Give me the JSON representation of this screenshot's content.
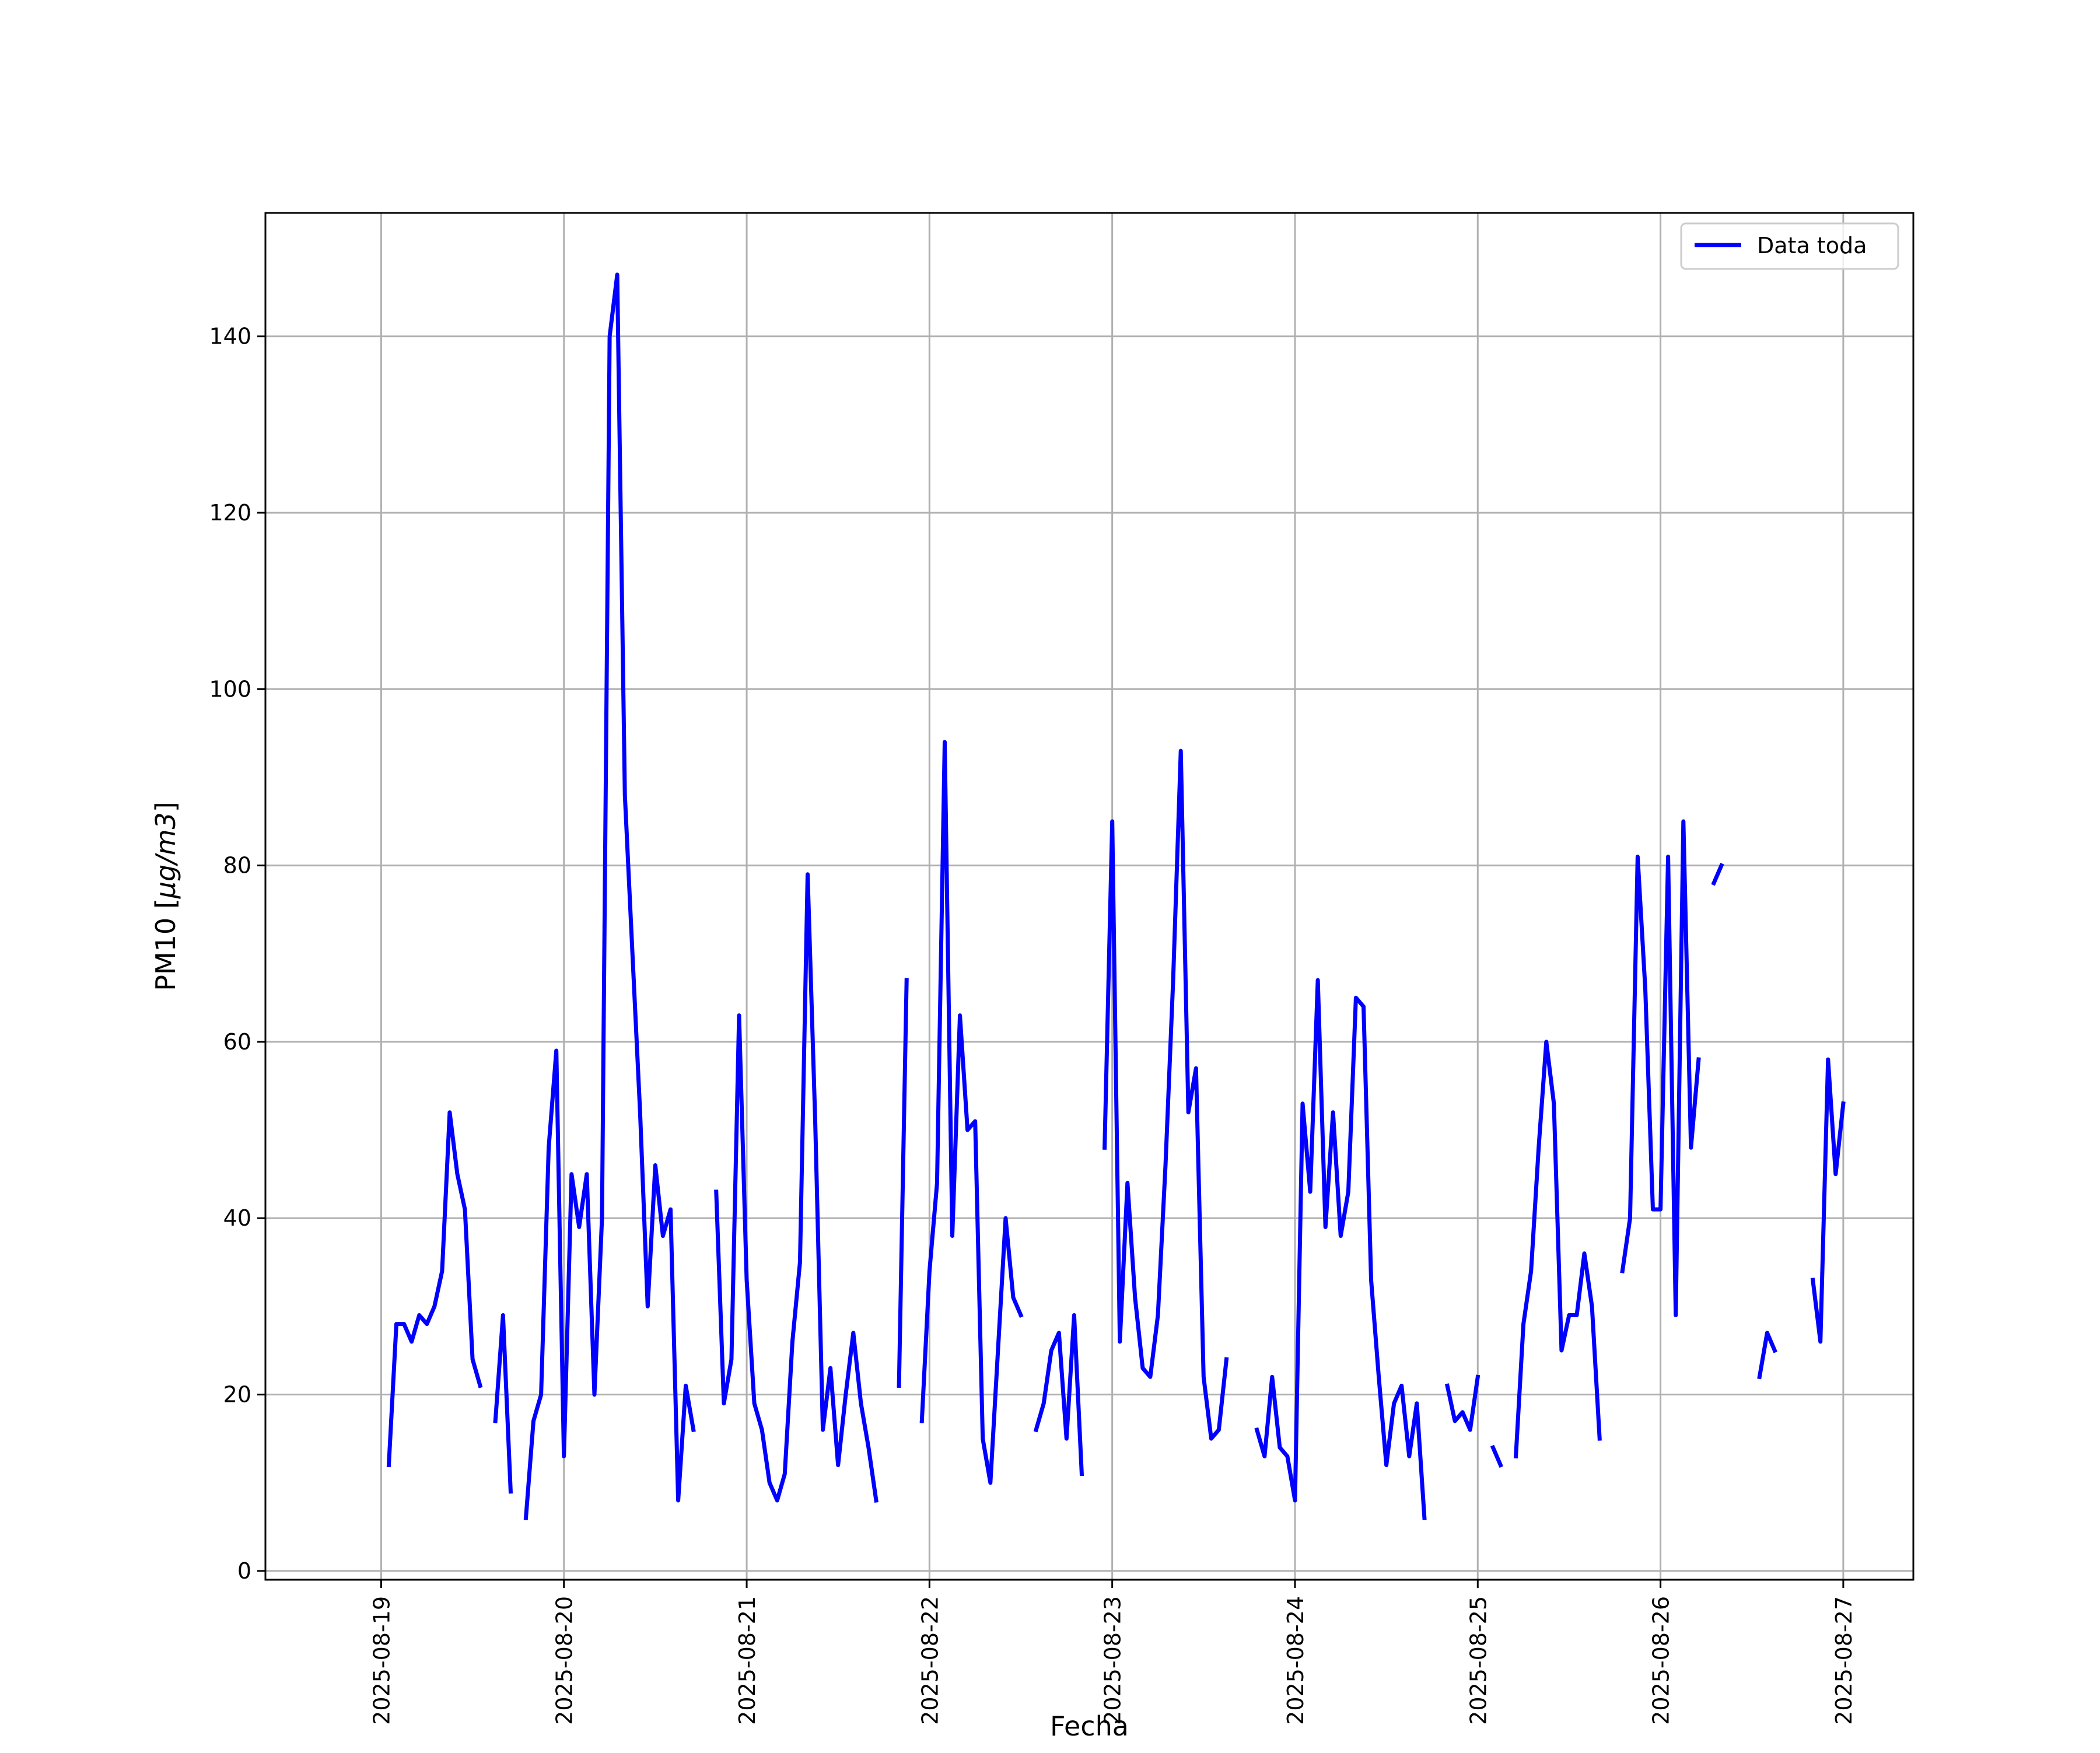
{
  "chart_data": {
    "type": "line",
    "title": "",
    "xlabel": "Fecha",
    "ylabel": "PM10 [μg/m3]",
    "ylabel_parts": {
      "prefix": "PM10 [",
      "italic": "μg/m3",
      "suffix": "]"
    },
    "x_ticks": [
      "2025-08-19",
      "2025-08-20",
      "2025-08-21",
      "2025-08-22",
      "2025-08-23",
      "2025-08-24",
      "2025-08-25",
      "2025-08-26",
      "2025-08-27"
    ],
    "y_ticks": [
      "0",
      "20",
      "40",
      "60",
      "80",
      "100",
      "120",
      "140"
    ],
    "xlim": [
      "2025-08-18 08:48",
      "2025-08-27 09:12"
    ],
    "ylim": [
      -1,
      154
    ],
    "grid": true,
    "legend": {
      "position": "upper right",
      "entries": [
        "Data toda"
      ]
    },
    "series": [
      {
        "name": "Data toda",
        "color": "#0000ff",
        "x_start": "2025-08-19 01:00",
        "x_step_hours": 1,
        "values": [
          12,
          28,
          28,
          26,
          29,
          28,
          30,
          34,
          52,
          45,
          41,
          24,
          21,
          null,
          17,
          29,
          9,
          null,
          6,
          17,
          20,
          48,
          59,
          13,
          45,
          39,
          45,
          20,
          40,
          140,
          147,
          88,
          70,
          52,
          30,
          46,
          38,
          41,
          8,
          21,
          16,
          null,
          null,
          43,
          19,
          24,
          63,
          33,
          19,
          16,
          10,
          8,
          11,
          26,
          35,
          79,
          51,
          16,
          23,
          12,
          20,
          27,
          19,
          14,
          8,
          null,
          null,
          21,
          67,
          null,
          17,
          34,
          44,
          94,
          38,
          63,
          50,
          51,
          15,
          10,
          25,
          40,
          31,
          29,
          null,
          16,
          19,
          25,
          27,
          15,
          29,
          11,
          null,
          null,
          48,
          85,
          26,
          44,
          31,
          23,
          22,
          29,
          46,
          67,
          93,
          52,
          57,
          22,
          15,
          16,
          24,
          null,
          null,
          null,
          16,
          13,
          22,
          14,
          13,
          8,
          53,
          43,
          67,
          39,
          52,
          38,
          43,
          65,
          64,
          33,
          22,
          12,
          19,
          21,
          13,
          19,
          6,
          null,
          null,
          21,
          17,
          18,
          16,
          22,
          null,
          14,
          12,
          null,
          13,
          28,
          34,
          48,
          60,
          53,
          25,
          29,
          29,
          36,
          30,
          15,
          null,
          null,
          34,
          40,
          81,
          66,
          41,
          41,
          81,
          29,
          85,
          48,
          58,
          null,
          78,
          80,
          null,
          null,
          null,
          null,
          22,
          27,
          25,
          null,
          null,
          null,
          null,
          33,
          26,
          58,
          45,
          53
        ]
      }
    ]
  }
}
